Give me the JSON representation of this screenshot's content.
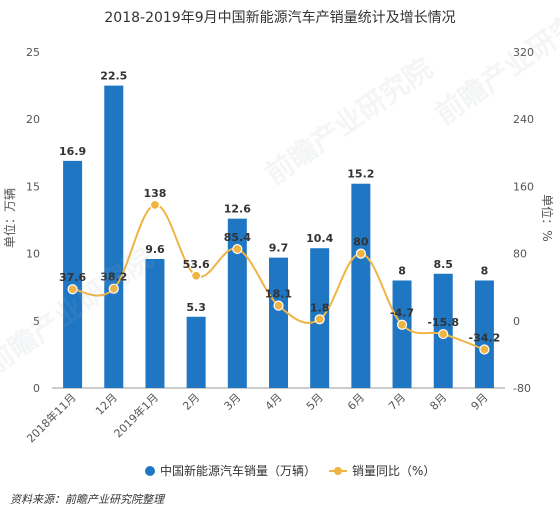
{
  "chart_data": {
    "type": "bar+line",
    "title": "2018-2019年9月中国新能源汽车产销量统计及增长情况",
    "categories": [
      "2018年11月",
      "12月",
      "2019年1月",
      "2月",
      "3月",
      "4月",
      "5月",
      "6月",
      "7月",
      "8月",
      "9月"
    ],
    "series": [
      {
        "name": "中国新能源汽车销量（万辆）",
        "type": "bar",
        "axis": "left",
        "color": "#1f77c4",
        "values": [
          16.9,
          22.5,
          9.6,
          5.3,
          12.6,
          9.7,
          10.4,
          15.2,
          8,
          8.5,
          8
        ],
        "labels": [
          "16.9",
          "22.5",
          "9.6",
          "5.3",
          "12.6",
          "9.7",
          "10.4",
          "15.2",
          "8",
          "8.5",
          "8"
        ]
      },
      {
        "name": "销量同比（%）",
        "type": "line",
        "axis": "right",
        "color": "#f0b445",
        "values": [
          37.6,
          38.2,
          138,
          53.6,
          85.4,
          18.1,
          1.8,
          80,
          -4.7,
          -15.8,
          -34.2
        ],
        "labels": [
          "37.6",
          "38.2",
          "138",
          "53.6",
          "85.4",
          "18.1",
          "1.8",
          "80",
          "-4.7",
          "-15.8",
          "-34.2"
        ]
      }
    ],
    "left_axis": {
      "label": "单位：万辆",
      "min": 0,
      "max": 25,
      "ticks": [
        "0",
        "5",
        "10",
        "15",
        "20",
        "25"
      ]
    },
    "right_axis": {
      "label": "单位：%",
      "min": -80,
      "max": 320,
      "ticks": [
        "-80",
        "0",
        "80",
        "160",
        "240",
        "320"
      ]
    },
    "grid": false,
    "legend_position": "bottom"
  },
  "source": "资料来源：前瞻产业研究院整理",
  "watermark": "前瞻产业研究院"
}
